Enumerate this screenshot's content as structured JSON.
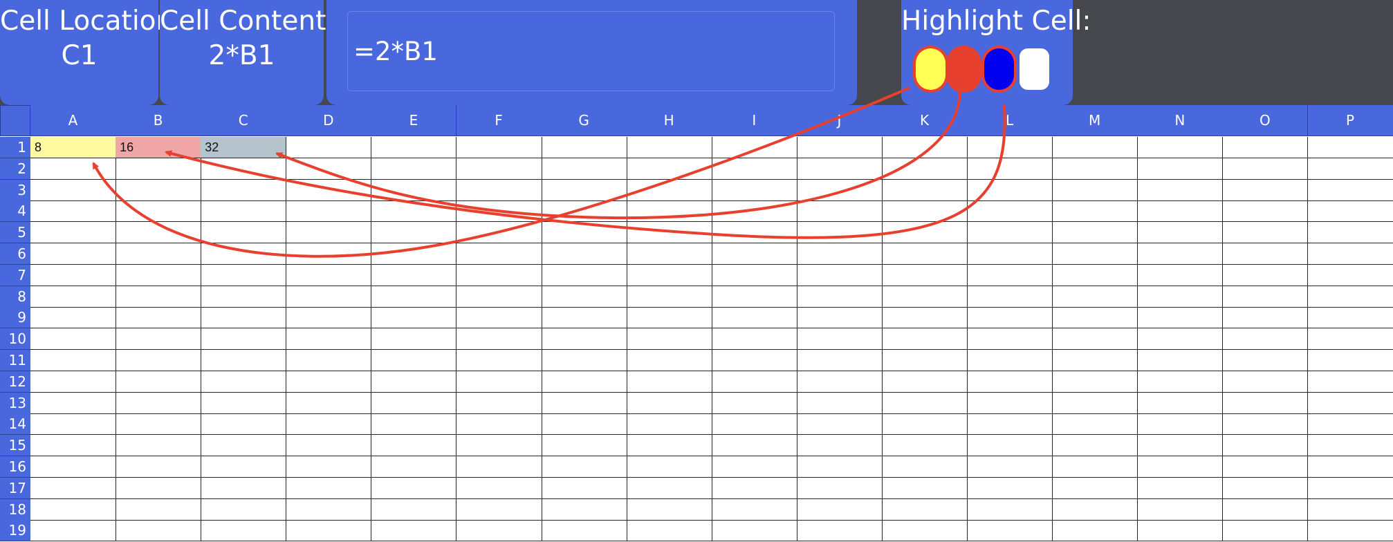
{
  "cell_location": {
    "title": "Cell Location",
    "value": "C1"
  },
  "cell_contents": {
    "title": "Cell Contents",
    "value": "2*B1"
  },
  "formula_bar": {
    "value": "=2*B1"
  },
  "highlight": {
    "title": "Highlight Cell:",
    "swatches": [
      {
        "name": "yellow",
        "color": "#ffff55",
        "circled": true
      },
      {
        "name": "red",
        "color": "#e8402f",
        "circled": true
      },
      {
        "name": "blue",
        "color": "#0000ee",
        "circled": true
      },
      {
        "name": "white",
        "color": "#ffffff",
        "circled": false
      }
    ]
  },
  "grid": {
    "columns": [
      "A",
      "B",
      "C",
      "D",
      "E",
      "F",
      "G",
      "H",
      "I",
      "J",
      "K",
      "L",
      "M",
      "N",
      "O",
      "P"
    ],
    "rows": [
      "1",
      "2",
      "3",
      "4",
      "5",
      "6",
      "7",
      "8",
      "9",
      "10",
      "11",
      "12",
      "13",
      "14",
      "15",
      "16",
      "17",
      "18",
      "19"
    ],
    "cells": [
      {
        "ref": "A1",
        "value": "8",
        "fill": "#fefaa2"
      },
      {
        "ref": "B1",
        "value": "16",
        "fill": "#f0a6a6"
      },
      {
        "ref": "C1",
        "value": "32",
        "fill": "#b4c3cc"
      }
    ],
    "annotation_color": "#e8402f"
  }
}
